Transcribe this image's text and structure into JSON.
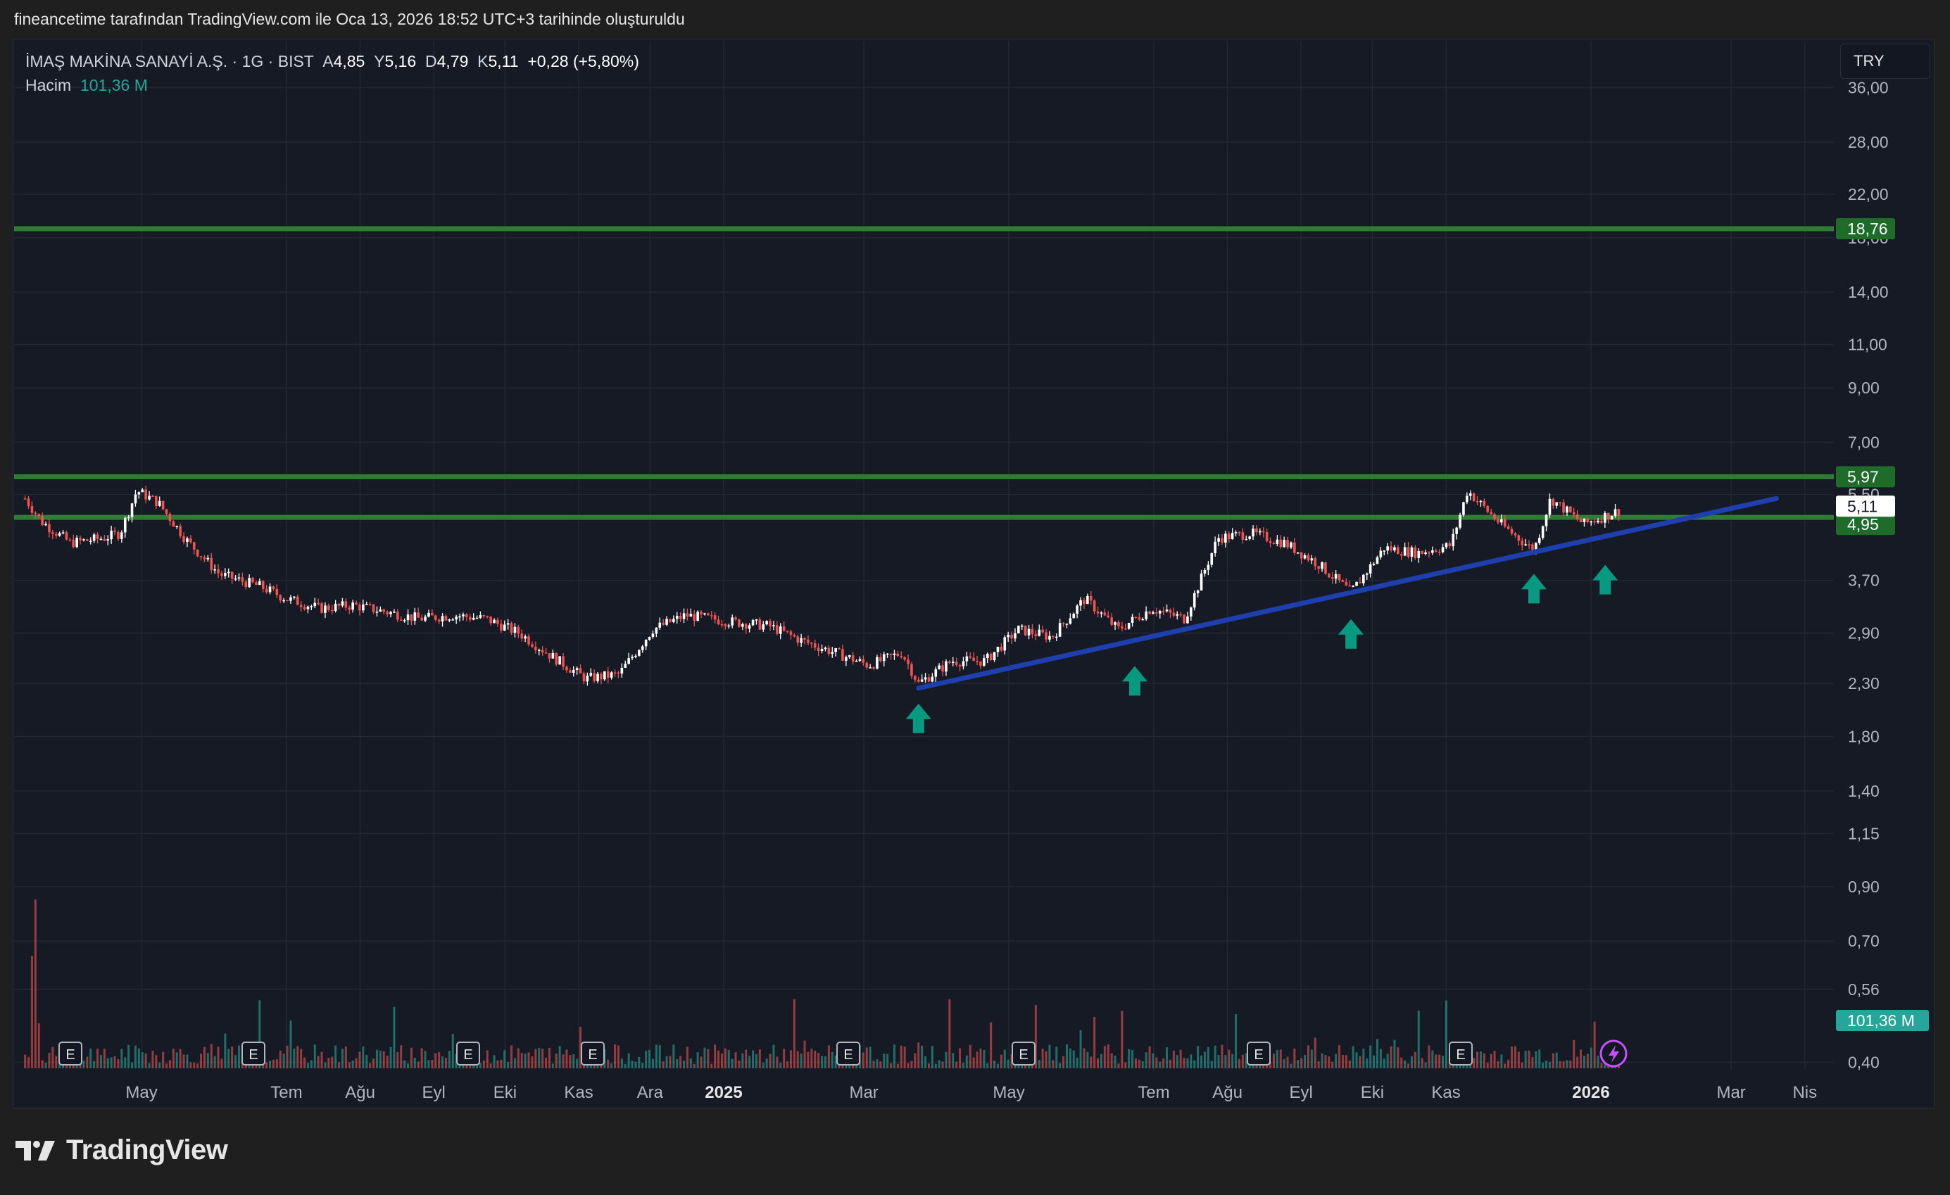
{
  "header_note": "fineancetime tarafından TradingView.com ile Oca 13, 2026 18:52 UTC+3 tarihinde oluşturuldu",
  "legend": {
    "symbol": "İMAŞ MAKİNA SANAYİ A.Ş. · 1G · BIST",
    "open_label": "A",
    "open": "4,85",
    "high_label": "Y",
    "high": "5,16",
    "low_label": "D",
    "low": "4,79",
    "close_label": "K",
    "close": "5,11",
    "change": "+0,28 (+5,80%)",
    "volume_label": "Hacim",
    "volume": "101,36 M"
  },
  "currency": "TRY",
  "brand": "TradingView",
  "colors": {
    "up": "#ffffff",
    "down": "#ef5350",
    "level": "#2e7d32",
    "trend": "#1e3fae",
    "arrow": "#089981",
    "vol_up": "#26a69a",
    "vol_down": "#ef5350"
  },
  "chart_data": {
    "type": "candlestick",
    "y_scale": "log",
    "y_ticks": [
      "36,00",
      "28,00",
      "22,00",
      "18,00",
      "14,00",
      "11,00",
      "9,00",
      "7,00",
      "5,50",
      "3,70",
      "2,90",
      "2,30",
      "1,80",
      "1,40",
      "1,15",
      "0,90",
      "0,70",
      "0,56",
      "0,40"
    ],
    "x_ticks": [
      "May",
      "Tem",
      "Ağu",
      "Eyl",
      "Eki",
      "Kas",
      "Ara",
      "2025",
      "Mar",
      "May",
      "Tem",
      "Ağu",
      "Eyl",
      "Eki",
      "Kas",
      "2026",
      "Mar",
      "Nis"
    ],
    "horizontal_levels": [
      {
        "value": 18.76,
        "label": "18,76"
      },
      {
        "value": 5.97,
        "label": "5,97"
      },
      {
        "value": 4.95,
        "label": "4,95"
      }
    ],
    "last_price": {
      "value": 5.11,
      "label": "5,11"
    },
    "volume_last": {
      "value": 101.36,
      "label": "101,36 M"
    },
    "trendline": {
      "from": {
        "date": "2025-03-24",
        "price": 2.25
      },
      "to": {
        "date": "2026-03-20",
        "price": 5.4
      }
    },
    "arrows": [
      {
        "date": "2025-03-24",
        "price": 1.95
      },
      {
        "date": "2025-06-23",
        "price": 2.32
      },
      {
        "date": "2025-09-22",
        "price": 2.88
      },
      {
        "date": "2025-12-08",
        "price": 3.55
      },
      {
        "date": "2026-01-07",
        "price": 3.7
      }
    ],
    "earnings_markers": [
      "E",
      "E",
      "E",
      "E",
      "E",
      "E",
      "E",
      "E"
    ],
    "close_path": [
      {
        "date": "2024-03-13",
        "c": 5.4
      },
      {
        "date": "2024-03-20",
        "c": 4.85
      },
      {
        "date": "2024-04-01",
        "c": 4.4
      },
      {
        "date": "2024-04-15",
        "c": 4.5
      },
      {
        "date": "2024-04-22",
        "c": 4.6
      },
      {
        "date": "2024-04-29",
        "c": 5.6
      },
      {
        "date": "2024-05-08",
        "c": 5.3
      },
      {
        "date": "2024-05-20",
        "c": 4.45
      },
      {
        "date": "2024-06-03",
        "c": 3.8
      },
      {
        "date": "2024-06-20",
        "c": 3.6
      },
      {
        "date": "2024-07-01",
        "c": 3.4
      },
      {
        "date": "2024-07-15",
        "c": 3.25
      },
      {
        "date": "2024-07-29",
        "c": 3.3
      },
      {
        "date": "2024-08-12",
        "c": 3.2
      },
      {
        "date": "2024-08-26",
        "c": 3.1
      },
      {
        "date": "2024-09-09",
        "c": 3.15
      },
      {
        "date": "2024-09-23",
        "c": 3.1
      },
      {
        "date": "2024-10-07",
        "c": 2.9
      },
      {
        "date": "2024-10-21",
        "c": 2.6
      },
      {
        "date": "2024-11-04",
        "c": 2.35
      },
      {
        "date": "2024-11-18",
        "c": 2.4
      },
      {
        "date": "2024-12-02",
        "c": 2.95
      },
      {
        "date": "2024-12-16",
        "c": 3.15
      },
      {
        "date": "2025-01-06",
        "c": 3.05
      },
      {
        "date": "2025-01-20",
        "c": 3.0
      },
      {
        "date": "2025-02-03",
        "c": 2.8
      },
      {
        "date": "2025-02-17",
        "c": 2.65
      },
      {
        "date": "2025-03-03",
        "c": 2.5
      },
      {
        "date": "2025-03-17",
        "c": 2.65
      },
      {
        "date": "2025-03-24",
        "c": 2.3
      },
      {
        "date": "2025-04-07",
        "c": 2.55
      },
      {
        "date": "2025-04-21",
        "c": 2.55
      },
      {
        "date": "2025-05-05",
        "c": 2.95
      },
      {
        "date": "2025-05-19",
        "c": 2.85
      },
      {
        "date": "2025-06-02",
        "c": 3.4
      },
      {
        "date": "2025-06-16",
        "c": 2.95
      },
      {
        "date": "2025-06-30",
        "c": 3.25
      },
      {
        "date": "2025-07-14",
        "c": 3.1
      },
      {
        "date": "2025-07-28",
        "c": 4.5
      },
      {
        "date": "2025-08-11",
        "c": 4.6
      },
      {
        "date": "2025-08-25",
        "c": 4.4
      },
      {
        "date": "2025-09-08",
        "c": 4.0
      },
      {
        "date": "2025-09-22",
        "c": 3.5
      },
      {
        "date": "2025-10-06",
        "c": 4.3
      },
      {
        "date": "2025-10-20",
        "c": 4.2
      },
      {
        "date": "2025-11-03",
        "c": 4.35
      },
      {
        "date": "2025-11-10",
        "c": 5.6
      },
      {
        "date": "2025-11-24",
        "c": 4.8
      },
      {
        "date": "2025-12-08",
        "c": 4.25
      },
      {
        "date": "2025-12-15",
        "c": 5.4
      },
      {
        "date": "2025-12-29",
        "c": 4.8
      },
      {
        "date": "2026-01-13",
        "c": 5.11
      }
    ]
  }
}
